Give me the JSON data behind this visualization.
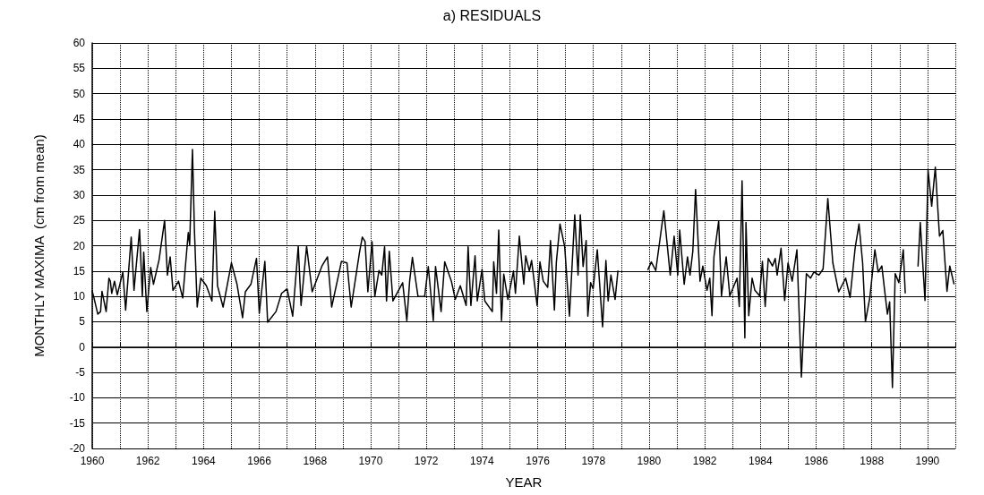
{
  "chart_data": {
    "type": "line",
    "title": "a) RESIDUALS",
    "xlabel": "YEAR",
    "ylabel": "MONTHLY MAXIMA  (cm from mean)",
    "xlim": [
      1960,
      1991
    ],
    "xticks": [
      1960,
      {
        "value": 1961,
        "label": null
      },
      1962,
      {
        "value": 1963,
        "label": null
      },
      1964,
      {
        "value": 1965,
        "label": null
      },
      1966,
      {
        "value": 1967,
        "label": null
      },
      1968,
      {
        "value": 1969,
        "label": null
      },
      1970,
      {
        "value": 1971,
        "label": null
      },
      1972,
      {
        "value": 1973,
        "label": null
      },
      1974,
      {
        "value": 1975,
        "label": null
      },
      1976,
      {
        "value": 1977,
        "label": null
      },
      1978,
      {
        "value": 1979,
        "label": null
      },
      1980,
      {
        "value": 1981,
        "label": null
      },
      1982,
      {
        "value": 1983,
        "label": null
      },
      1984,
      {
        "value": 1985,
        "label": null
      },
      1986,
      {
        "value": 1987,
        "label": null
      },
      1988,
      {
        "value": 1989,
        "label": null
      },
      1990,
      {
        "value": 1991,
        "label": null
      }
    ],
    "ylim": [
      -20,
      60
    ],
    "yticks": [
      -20,
      -15,
      -10,
      -5,
      0,
      5,
      10,
      15,
      20,
      25,
      30,
      35,
      40,
      45,
      50,
      55,
      60
    ],
    "grid": true,
    "marker": "none",
    "line_style": "solid",
    "series": [
      {
        "color": "#000000",
        "x": [
          1960,
          1960.05,
          1960.2,
          1960.3,
          1960.35,
          1960.5,
          1960.6,
          1960.65,
          1960.7,
          1960.8,
          1960.9,
          1961.1,
          1961.2,
          1961.4,
          1961.5,
          1961.7,
          1961.8,
          1961.85,
          1961.96,
          1962.1,
          1962.2,
          1962.4,
          1962.6,
          1962.7,
          1962.8,
          1962.9,
          1963.1,
          1963.25,
          1963.45,
          1963.5,
          1963.6,
          1963.67,
          1963.77,
          1963.9,
          1964.1,
          1964.3,
          1964.4,
          1964.5,
          1964.7,
          1965,
          1965.2,
          1965.4,
          1965.5,
          1965.7,
          1965.9,
          1966,
          1966.2,
          1966.3,
          1966.6,
          1966.8,
          1967,
          1967.2,
          1967.4,
          1967.5,
          1967.7,
          1967.9,
          1968.25,
          1968.45,
          1968.6,
          1968.8,
          1968.95,
          1969.15,
          1969.3,
          1969.6,
          1969.7,
          1969.8,
          1969.9,
          1970.05,
          1970.15,
          1970.3,
          1970.4,
          1970.5,
          1970.57,
          1970.67,
          1970.8,
          1971.15,
          1971.3,
          1971.4,
          1971.5,
          1971.7,
          1971.94,
          1972.07,
          1972.25,
          1972.33,
          1972.53,
          1972.66,
          1972.9,
          1973.04,
          1973.22,
          1973.43,
          1973.5,
          1973.6,
          1973.75,
          1973.83,
          1974,
          1974.1,
          1974.37,
          1974.42,
          1974.52,
          1974.6,
          1974.7,
          1974.78,
          1974.93,
          1975.13,
          1975.2,
          1975.34,
          1975.5,
          1975.57,
          1975.7,
          1975.78,
          1975.98,
          1976.08,
          1976.2,
          1976.36,
          1976.46,
          1976.6,
          1976.67,
          1976.8,
          1976.97,
          1977.14,
          1977.33,
          1977.45,
          1977.53,
          1977.63,
          1977.74,
          1977.8,
          1977.9,
          1977.99,
          1978.14,
          1978.33,
          1978.45,
          1978.53,
          1978.63,
          1978.78,
          1978.88,
          1979.4,
          1979.96,
          1980.08,
          1980.24,
          1980.53,
          1980.76,
          1980.9,
          1981.03,
          1981.1,
          1981.26,
          1981.38,
          1981.47,
          1981.57,
          1981.67,
          1981.83,
          1981.93,
          1982.08,
          1982.18,
          1982.26,
          1982.33,
          1982.5,
          1982.6,
          1982.77,
          1982.9,
          1983.16,
          1983.24,
          1983.34,
          1983.44,
          1983.48,
          1983.58,
          1983.7,
          1983.8,
          1983.97,
          1984.07,
          1984.17,
          1984.28,
          1984.43,
          1984.53,
          1984.6,
          1984.74,
          1984.87,
          1984.99,
          1985.14,
          1985.31,
          1985.47,
          1985.65,
          1985.8,
          1985.92,
          1986.1,
          1986.25,
          1986.42,
          1986.6,
          1986.81,
          1987.06,
          1987.22,
          1987.4,
          1987.54,
          1987.67,
          1987.77,
          1987.93,
          1988.11,
          1988.23,
          1988.36,
          1988.46,
          1988.56,
          1988.64,
          1988.74,
          1988.84,
          1988.97,
          1989.13,
          1989.2,
          1989.4,
          1989.66,
          1989.74,
          1989.91,
          1990.02,
          1990.15,
          1990.28,
          1990.43,
          1990.55,
          1990.7,
          1990.8,
          1990.95
        ],
        "values": [
          11,
          10,
          6.5,
          7,
          11,
          7,
          13.6,
          13,
          10.6,
          13,
          10.3,
          14.8,
          7.3,
          21.7,
          11.2,
          23.2,
          10,
          18.7,
          7,
          15.7,
          12.4,
          17.2,
          25,
          14.2,
          17.8,
          11.2,
          13,
          9.7,
          22.6,
          20.2,
          39,
          23.2,
          7.9,
          13.6,
          12.1,
          9.1,
          26.8,
          12.1,
          7.9,
          16.6,
          12.4,
          5.8,
          10.9,
          12.4,
          17.5,
          6.7,
          16.9,
          4.9,
          7,
          10.6,
          11.5,
          6.1,
          19.9,
          8.2,
          19.9,
          10.9,
          16,
          17.8,
          7.9,
          13,
          16.9,
          16.6,
          7.9,
          18.7,
          21.7,
          20.8,
          10.9,
          20.8,
          10,
          15.1,
          14.2,
          19.8,
          9.1,
          18.9,
          9.1,
          12.7,
          5.2,
          13,
          17.7,
          10,
          10,
          15.9,
          5.2,
          15.9,
          7,
          16.8,
          13,
          9.4,
          12.1,
          8.2,
          19.8,
          8.2,
          18,
          9.1,
          15.3,
          9.1,
          7,
          16.8,
          10.6,
          23.1,
          5.2,
          14.4,
          9.4,
          15,
          10.6,
          21.9,
          12.4,
          18,
          15,
          17.1,
          8.2,
          16.8,
          13,
          11.8,
          21,
          7.3,
          16.8,
          24.3,
          19.8,
          6.1,
          26.1,
          14.2,
          26.1,
          15.9,
          21,
          6.1,
          12.7,
          11.5,
          19.2,
          4,
          17.1,
          9.1,
          14.2,
          9.4,
          15,
          null,
          15.3,
          16.8,
          15.1,
          26.9,
          14.2,
          21.9,
          14.2,
          23.1,
          12.4,
          17.8,
          14.2,
          18.9,
          31.1,
          13,
          16,
          11.2,
          13.6,
          6.2,
          17.8,
          24.9,
          10.1,
          17.8,
          10.1,
          13.6,
          8,
          32.8,
          1.8,
          24.6,
          6.2,
          13.6,
          11.2,
          10.1,
          16.9,
          8,
          17.5,
          16,
          17.5,
          14.2,
          19.5,
          9.2,
          16.6,
          13,
          19.2,
          -5.9,
          14.5,
          13.6,
          14.8,
          14.2,
          15.4,
          29.3,
          16.6,
          10.9,
          13.6,
          9.8,
          19.5,
          24.3,
          16.6,
          5,
          9.8,
          19.2,
          14.8,
          16,
          11.2,
          6.5,
          8.9,
          -8,
          14.5,
          12.7,
          19.2,
          10.7,
          null,
          16,
          24.6,
          9.2,
          34.9,
          27.8,
          35.5,
          21.9,
          23,
          11,
          16,
          12.5
        ]
      }
    ]
  }
}
